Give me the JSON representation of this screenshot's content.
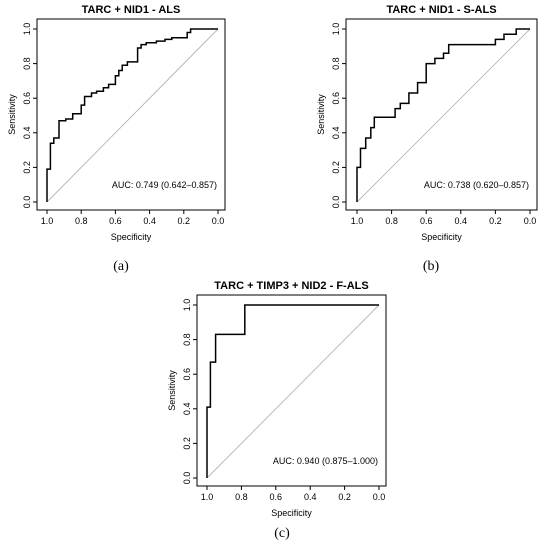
{
  "chart_data": [
    {
      "type": "line",
      "title": "TARC + NID1 - ALS",
      "xlabel": "Specificity",
      "ylabel": "Sensitivity",
      "xlim": [
        1.0,
        0.0
      ],
      "ylim": [
        0.0,
        1.0
      ],
      "x_reversed": true,
      "x_ticks": [
        "1.0",
        "0.8",
        "0.6",
        "0.4",
        "0.2",
        "0.0"
      ],
      "y_ticks": [
        "0.0",
        "0.2",
        "0.4",
        "0.6",
        "0.8",
        "1.0"
      ],
      "annotation": "AUC: 0.749 (0.642–0.857)",
      "panel_label": "(a)",
      "reference_line": true,
      "series": [
        {
          "x": [
            1.0,
            1.0,
            0.98,
            0.98,
            0.96,
            0.96,
            0.93,
            0.93,
            0.89,
            0.89,
            0.85,
            0.85,
            0.8,
            0.8,
            0.78,
            0.78,
            0.74,
            0.74,
            0.71,
            0.71,
            0.67,
            0.67,
            0.64,
            0.64,
            0.6,
            0.6,
            0.58,
            0.58,
            0.56,
            0.56,
            0.53,
            0.53,
            0.47,
            0.47,
            0.45,
            0.45,
            0.42,
            0.42,
            0.36,
            0.36,
            0.31,
            0.31,
            0.27,
            0.27,
            0.18,
            0.18,
            0.16,
            0.16,
            0.0
          ],
          "y": [
            0.0,
            0.19,
            0.19,
            0.34,
            0.34,
            0.37,
            0.37,
            0.47,
            0.47,
            0.48,
            0.48,
            0.51,
            0.51,
            0.56,
            0.56,
            0.61,
            0.61,
            0.63,
            0.63,
            0.64,
            0.64,
            0.66,
            0.66,
            0.68,
            0.68,
            0.73,
            0.73,
            0.76,
            0.76,
            0.79,
            0.79,
            0.81,
            0.81,
            0.89,
            0.89,
            0.91,
            0.91,
            0.92,
            0.92,
            0.93,
            0.93,
            0.94,
            0.94,
            0.95,
            0.95,
            0.98,
            0.98,
            1.0,
            1.0
          ]
        }
      ]
    },
    {
      "type": "line",
      "title": "TARC + NID1 - S-ALS",
      "xlabel": "Specificity",
      "ylabel": "Sensitivity",
      "xlim": [
        1.0,
        0.0
      ],
      "ylim": [
        0.0,
        1.0
      ],
      "x_reversed": true,
      "x_ticks": [
        "1.0",
        "0.8",
        "0.6",
        "0.4",
        "0.2",
        "0.0"
      ],
      "y_ticks": [
        "0.0",
        "0.2",
        "0.4",
        "0.6",
        "0.8",
        "1.0"
      ],
      "annotation": "AUC: 0.738 (0.620–0.857)",
      "panel_label": "(b)",
      "reference_line": true,
      "series": [
        {
          "x": [
            1.0,
            1.0,
            0.98,
            0.98,
            0.95,
            0.95,
            0.92,
            0.92,
            0.9,
            0.9,
            0.78,
            0.78,
            0.75,
            0.75,
            0.7,
            0.7,
            0.65,
            0.65,
            0.6,
            0.6,
            0.55,
            0.55,
            0.5,
            0.5,
            0.47,
            0.47,
            0.2,
            0.2,
            0.15,
            0.15,
            0.08,
            0.08,
            0.0
          ],
          "y": [
            0.0,
            0.2,
            0.2,
            0.31,
            0.31,
            0.37,
            0.37,
            0.43,
            0.43,
            0.49,
            0.49,
            0.54,
            0.54,
            0.57,
            0.57,
            0.63,
            0.63,
            0.69,
            0.69,
            0.8,
            0.8,
            0.83,
            0.83,
            0.86,
            0.86,
            0.91,
            0.91,
            0.94,
            0.94,
            0.97,
            0.97,
            1.0,
            1.0
          ]
        }
      ]
    },
    {
      "type": "line",
      "title": "TARC + TIMP3 + NID2 - F-ALS",
      "xlabel": "Specificity",
      "ylabel": "Sensitivity",
      "xlim": [
        1.0,
        0.0
      ],
      "ylim": [
        0.0,
        1.0
      ],
      "x_reversed": true,
      "x_ticks": [
        "1.0",
        "0.8",
        "0.6",
        "0.4",
        "0.2",
        "0.0"
      ],
      "y_ticks": [
        "0.0",
        "0.2",
        "0.4",
        "0.6",
        "0.8",
        "1.0"
      ],
      "annotation": "AUC: 0.940 (0.875–1.000)",
      "panel_label": "(c)",
      "reference_line": true,
      "series": [
        {
          "x": [
            1.0,
            1.0,
            0.98,
            0.98,
            0.95,
            0.95,
            0.9,
            0.9,
            0.78,
            0.78,
            0.0
          ],
          "y": [
            0.0,
            0.41,
            0.41,
            0.67,
            0.67,
            0.83,
            0.83,
            0.83,
            0.83,
            1.0,
            1.0
          ]
        }
      ]
    }
  ]
}
